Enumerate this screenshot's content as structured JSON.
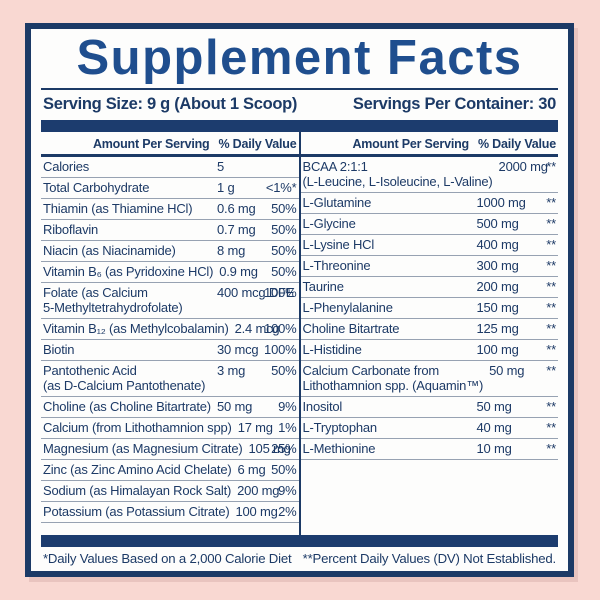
{
  "colors": {
    "background_pink": "#f9d8d2",
    "navy": "#1c3a66",
    "title_blue": "#1f4e8e",
    "row_line": "#97a2b2",
    "card_white": "#fdfdfc"
  },
  "label": {
    "title": "Supplement Facts",
    "serving_size": "Serving Size: 9 g (About 1 Scoop)",
    "servings_per_container": "Servings Per Container: 30",
    "column_header": {
      "amount": "Amount Per Serving",
      "daily_value": "% Daily Value"
    },
    "left_rows": [
      {
        "name": "Calories",
        "amount": "5",
        "dv": ""
      },
      {
        "name": "Total Carbohydrate",
        "amount": "1 g",
        "dv": "<1%*"
      },
      {
        "name": "Thiamin (as Thiamine HCl)",
        "amount": "0.6 mg",
        "dv": "50%"
      },
      {
        "name": "Riboflavin",
        "amount": "0.7 mg",
        "dv": "50%"
      },
      {
        "name": "Niacin (as Niacinamide)",
        "amount": "8 mg",
        "dv": "50%"
      },
      {
        "name": "Vitamin B₆ (as Pyridoxine HCl)",
        "amount": "0.9 mg",
        "dv": "50%"
      },
      {
        "name": "Folate (as Calcium\n5-Methyltetrahydrofolate)",
        "amount": "400 mcg DFE",
        "dv": "100%"
      },
      {
        "name": "Vitamin B₁₂ (as Methylcobalamin)",
        "amount": "2.4 mcg",
        "dv": "100%"
      },
      {
        "name": "Biotin",
        "amount": "30 mcg",
        "dv": "100%"
      },
      {
        "name": "Pantothenic Acid\n(as D-Calcium Pantothenate)",
        "amount": "3 mg",
        "dv": "50%"
      },
      {
        "name": "Choline (as Choline Bitartrate)",
        "amount": "50 mg",
        "dv": "9%"
      },
      {
        "name": "Calcium (from Lithothamnion spp)",
        "amount": "17 mg",
        "dv": "1%"
      },
      {
        "name": "Magnesium (as Magnesium Citrate)",
        "amount": "105 mg",
        "dv": "25%"
      },
      {
        "name": "Zinc (as Zinc Amino Acid Chelate)",
        "amount": "6 mg",
        "dv": "50%"
      },
      {
        "name": "Sodium (as Himalayan Rock Salt)",
        "amount": "200 mg",
        "dv": "9%"
      },
      {
        "name": "Potassium (as Potassium Citrate)",
        "amount": "100 mg",
        "dv": "2%"
      }
    ],
    "right_rows": [
      {
        "name": "BCAA 2:1:1\n(L-Leucine, L-Isoleucine, L-Valine)",
        "amount": "2000 mg",
        "dv": "**"
      },
      {
        "name": "L-Glutamine",
        "amount": "1000 mg",
        "dv": "**"
      },
      {
        "name": "L-Glycine",
        "amount": "500 mg",
        "dv": "**"
      },
      {
        "name": "L-Lysine HCl",
        "amount": "400 mg",
        "dv": "**"
      },
      {
        "name": "L-Threonine",
        "amount": "300 mg",
        "dv": "**"
      },
      {
        "name": "Taurine",
        "amount": "200 mg",
        "dv": "**"
      },
      {
        "name": "L-Phenylalanine",
        "amount": "150 mg",
        "dv": "**"
      },
      {
        "name": "Choline Bitartrate",
        "amount": "125 mg",
        "dv": "**"
      },
      {
        "name": "L-Histidine",
        "amount": "100 mg",
        "dv": "**"
      },
      {
        "name": "Calcium Carbonate from\nLithothamnion spp. (Aquamin™)",
        "amount": "50 mg",
        "dv": "**"
      },
      {
        "name": "Inositol",
        "amount": "50 mg",
        "dv": "**"
      },
      {
        "name": "L-Tryptophan",
        "amount": "40 mg",
        "dv": "**"
      },
      {
        "name": "L-Methionine",
        "amount": "10 mg",
        "dv": "**"
      }
    ],
    "footnote_left": "*Daily Values Based on a 2,000 Calorie Diet",
    "footnote_right": "**Percent Daily Values (DV) Not Established."
  }
}
